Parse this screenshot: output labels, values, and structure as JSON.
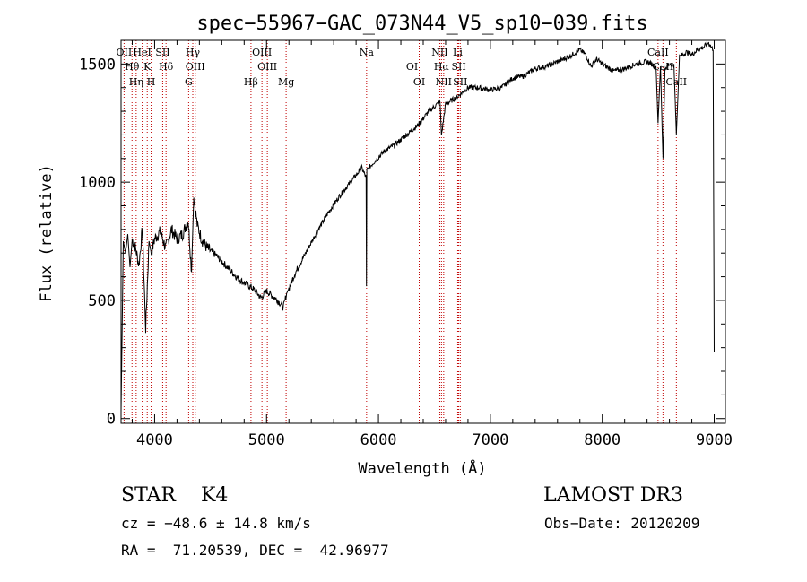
{
  "chart_data": {
    "type": "line",
    "title": "spec−55967−GAC_073N44_V5_sp10−039.fits",
    "xlabel": "Wavelength (Å)",
    "ylabel": "Flux (relative)",
    "xlim": [
      3700,
      9100
    ],
    "ylim": [
      -20,
      1600
    ],
    "xticks": [
      4000,
      5000,
      6000,
      7000,
      8000,
      9000
    ],
    "yticks": [
      0,
      500,
      1000,
      1500
    ],
    "grid": false,
    "series": [
      {
        "values_note": "",
        "x": [
          3700,
          3720,
          3740,
          3760,
          3780,
          3800,
          3830,
          3860,
          3890,
          3920,
          3950,
          3970,
          4000,
          4050,
          4100,
          4150,
          4200,
          4250,
          4300,
          4330,
          4350,
          4380,
          4420,
          4470,
          4550,
          4650,
          4750,
          4850,
          4900,
          4950,
          5000,
          5050,
          5100,
          5150,
          5180,
          5200,
          5250,
          5350,
          5450,
          5550,
          5650,
          5750,
          5850,
          5890,
          5893,
          5896,
          5950,
          6050,
          6150,
          6250,
          6350,
          6450,
          6550,
          6563,
          6600,
          6700,
          6800,
          6900,
          7000,
          7100,
          7200,
          7300,
          7400,
          7500,
          7600,
          7700,
          7800,
          7850,
          7900,
          7950,
          8000,
          8100,
          8200,
          8300,
          8400,
          8480,
          8498,
          8520,
          8542,
          8560,
          8600,
          8640,
          8662,
          8690,
          8750,
          8800,
          8850,
          8900,
          8950,
          8990,
          9000
        ],
        "y": [
          30,
          750,
          700,
          780,
          640,
          760,
          720,
          650,
          800,
          380,
          750,
          700,
          760,
          790,
          720,
          800,
          760,
          780,
          840,
          620,
          940,
          820,
          760,
          720,
          690,
          640,
          590,
          560,
          540,
          510,
          540,
          520,
          500,
          470,
          530,
          550,
          610,
          700,
          790,
          870,
          940,
          1000,
          1060,
          1020,
          560,
          1050,
          1080,
          1130,
          1160,
          1200,
          1240,
          1300,
          1340,
          1200,
          1330,
          1360,
          1400,
          1400,
          1390,
          1400,
          1440,
          1450,
          1480,
          1490,
          1510,
          1530,
          1560,
          1540,
          1490,
          1520,
          1500,
          1470,
          1480,
          1500,
          1510,
          1490,
          1250,
          1490,
          1100,
          1480,
          1500,
          1500,
          1200,
          1530,
          1550,
          1540,
          1560,
          1570,
          1590,
          1560,
          280
        ]
      }
    ],
    "lines": [
      {
        "wavelength": 3727,
        "label": "OII"
      },
      {
        "wavelength": 3798,
        "label": "Hθ"
      },
      {
        "wavelength": 3835,
        "label": "Hη"
      },
      {
        "wavelength": 3889,
        "label": "HeI"
      },
      {
        "wavelength": 3934,
        "label": "K"
      },
      {
        "wavelength": 3969,
        "label": "H"
      },
      {
        "wavelength": 4072,
        "label": "SII"
      },
      {
        "wavelength": 4102,
        "label": "Hδ"
      },
      {
        "wavelength": 4304,
        "label": "G"
      },
      {
        "wavelength": 4341,
        "label": "Hγ"
      },
      {
        "wavelength": 4363,
        "label": "OIII"
      },
      {
        "wavelength": 4861,
        "label": "Hβ"
      },
      {
        "wavelength": 4959,
        "label": "OIII"
      },
      {
        "wavelength": 5007,
        "label": "OIII"
      },
      {
        "wavelength": 5175,
        "label": "Mg"
      },
      {
        "wavelength": 5894,
        "label": "Na"
      },
      {
        "wavelength": 6300,
        "label": "OI"
      },
      {
        "wavelength": 6364,
        "label": "OI"
      },
      {
        "wavelength": 6548,
        "label": "NII"
      },
      {
        "wavelength": 6563,
        "label": "Hα"
      },
      {
        "wavelength": 6583,
        "label": "NII"
      },
      {
        "wavelength": 6708,
        "label": "Li"
      },
      {
        "wavelength": 6717,
        "label": "SII"
      },
      {
        "wavelength": 6731,
        "label": "SII"
      },
      {
        "wavelength": 8498,
        "label": "CaII"
      },
      {
        "wavelength": 8542,
        "label": "CaII"
      },
      {
        "wavelength": 8662,
        "label": "CaII"
      }
    ],
    "line_color": "#c00000"
  },
  "info": {
    "class_line": "STAR    K4",
    "survey": "LAMOST DR3",
    "cz": "cz = −48.6 ± 14.8 km/s",
    "obs_date": "Obs−Date: 20120209",
    "radec": "RA =  71.20539, DEC =  42.96977"
  }
}
